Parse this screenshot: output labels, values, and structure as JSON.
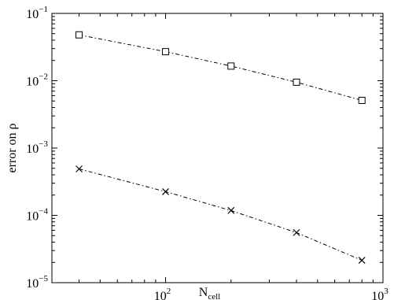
{
  "chart_data": {
    "type": "line",
    "xlabel": "N",
    "xlabel_sub": "cell",
    "ylabel": "error on ρ",
    "xscale": "log",
    "yscale": "log",
    "xlim": [
      30,
      1000
    ],
    "ylim": [
      1e-05,
      0.1
    ],
    "grid": false,
    "x_ticks": [
      {
        "value": 100,
        "base": "10",
        "exp": "2"
      },
      {
        "value": 1000,
        "base": "10",
        "exp": "3"
      }
    ],
    "y_ticks": [
      {
        "value": 1e-05,
        "base": "10",
        "exp": "−5"
      },
      {
        "value": 0.0001,
        "base": "10",
        "exp": "−4"
      },
      {
        "value": 0.001,
        "base": "10",
        "exp": "−3"
      },
      {
        "value": 0.01,
        "base": "10",
        "exp": "−2"
      },
      {
        "value": 0.1,
        "base": "10",
        "exp": "−1"
      }
    ],
    "series": [
      {
        "marker": "square",
        "line_style": "dash-dot",
        "color": "#000000",
        "x": [
          40,
          100,
          200,
          400,
          800
        ],
        "y": [
          0.048,
          0.027,
          0.0165,
          0.0095,
          0.0051
        ]
      },
      {
        "marker": "x",
        "line_style": "dash-dot",
        "color": "#000000",
        "x": [
          40,
          100,
          200,
          400,
          800
        ],
        "y": [
          0.00049,
          0.000225,
          0.000118,
          5.55e-05,
          2.15e-05
        ]
      }
    ]
  }
}
